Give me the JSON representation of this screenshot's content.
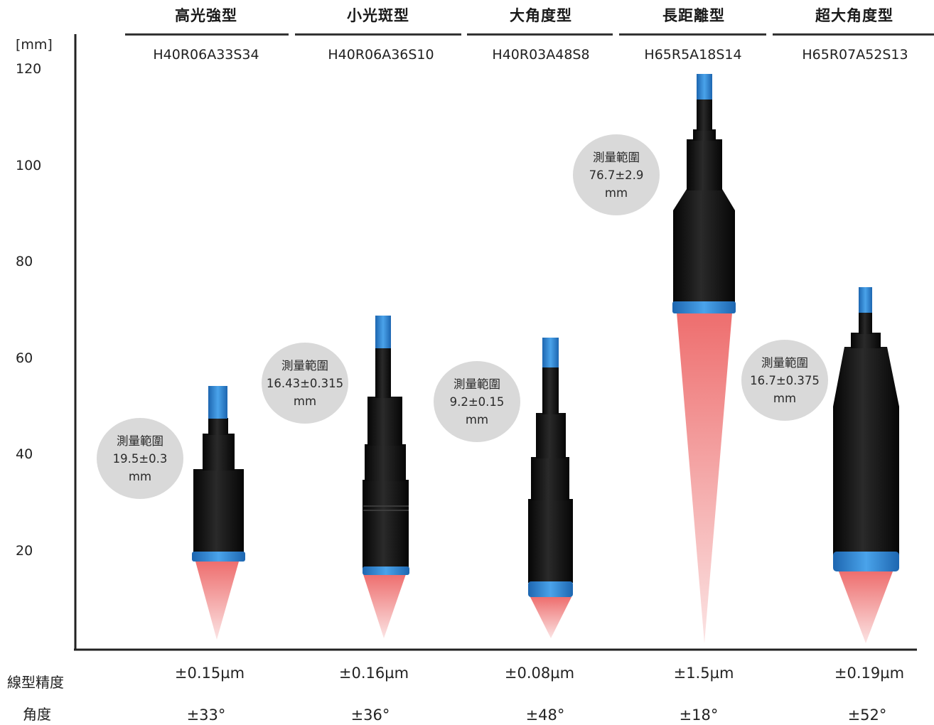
{
  "axis": {
    "unit": "[mm]",
    "ticks": [
      {
        "value": 120,
        "label": "120"
      },
      {
        "value": 100,
        "label": "100"
      },
      {
        "value": 80,
        "label": "80"
      },
      {
        "value": 60,
        "label": "60"
      },
      {
        "value": 40,
        "label": "40"
      },
      {
        "value": 20,
        "label": "20"
      }
    ]
  },
  "rows": {
    "linearity_label": "線型精度",
    "angle_label": "角度"
  },
  "colors": {
    "sensor_body": "#151515",
    "sensor_ring": "#2f86d3",
    "laser_beam": "#f07a7a",
    "bubble": "#d9d9d9"
  },
  "sensors": [
    {
      "category": "高光強型",
      "model": "H40R06A33S34",
      "range_title": "測量範圍",
      "range_value": "19.5±0.3",
      "range_unit": "mm",
      "linearity": "±0.15µm",
      "angle": "±33°"
    },
    {
      "category": "小光斑型",
      "model": "H40R06A36S10",
      "range_title": "測量範圍",
      "range_value": "16.43±0.315",
      "range_unit": "mm",
      "linearity": "±0.16µm",
      "angle": "±36°"
    },
    {
      "category": "大角度型",
      "model": "H40R03A48S8",
      "range_title": "測量範圍",
      "range_value": "9.2±0.15",
      "range_unit": "mm",
      "linearity": "±0.08µm",
      "angle": "±48°"
    },
    {
      "category": "長距離型",
      "model": "H65R5A18S14",
      "range_title": "測量範圍",
      "range_value": "76.7±2.9",
      "range_unit": "mm",
      "linearity": "±1.5µm",
      "angle": "±18°"
    },
    {
      "category": "超大角度型",
      "model": "H65R07A52S13",
      "range_title": "測量範圍",
      "range_value": "16.7±0.375",
      "range_unit": "mm",
      "linearity": "±0.19µm",
      "angle": "±52°"
    }
  ]
}
